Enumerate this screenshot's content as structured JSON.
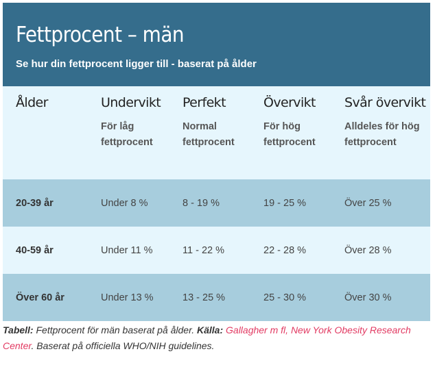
{
  "header": {
    "title": "Fettprocent – män",
    "subtitle": "Se hur din fettprocent ligger till - baserat på ålder"
  },
  "columns": [
    {
      "title": "Ålder",
      "desc": ""
    },
    {
      "title": "Undervikt",
      "desc": "För låg fettprocent"
    },
    {
      "title": "Perfekt",
      "desc": "Normal fettprocent"
    },
    {
      "title": "Övervikt",
      "desc": "För hög fettprocent"
    },
    {
      "title": "Svår övervikt",
      "desc": "Alldeles för hög fettprocent"
    }
  ],
  "rows": [
    {
      "age": "20-39 år",
      "under": "Under 8 %",
      "perfect": "8 - 19 %",
      "over": "19 - 25 %",
      "severe": "Över 25 %"
    },
    {
      "age": "40-59 år",
      "under": "Under 11 %",
      "perfect": "11 - 22 %",
      "over": "22 - 28 %",
      "severe": "Över 28 %"
    },
    {
      "age": "Över 60 år",
      "under": "Under 13 %",
      "perfect": "13 - 25 %",
      "over": "25 - 30 %",
      "severe": "Över 30 %"
    }
  ],
  "caption": {
    "label": "Tabell:",
    "text": " Fettprocent för män baserat på ålder. ",
    "source_label": "Källa:",
    "source": " Gallagher m fl, New York Obesity Research Center",
    "tail": ". Baserat på officiella WHO/NIH guidelines."
  },
  "colors": {
    "header_bg": "#356d8c",
    "row_dark": "#a7cddd",
    "row_light": "#e6f6fd",
    "link": "#e23a62"
  }
}
